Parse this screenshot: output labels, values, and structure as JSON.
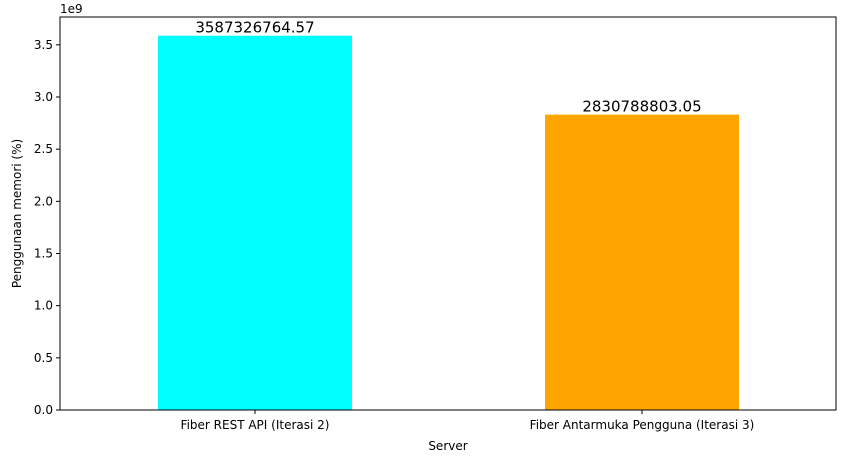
{
  "chart_data": {
    "type": "bar",
    "categories": [
      "Fiber REST API (Iterasi 2)",
      "Fiber Antarmuka Pengguna (Iterasi 3)"
    ],
    "values": [
      3587326764.57,
      2830788803.05
    ],
    "value_labels": [
      "3587326764.57",
      "2830788803.05"
    ],
    "colors": [
      "#00ffff",
      "#ffa500"
    ],
    "xlabel": "Server",
    "ylabel": "Penggunaan memori (%)",
    "ylim": [
      0,
      3766693102.8
    ],
    "yticks": [
      0,
      0.5,
      1.0,
      1.5,
      2.0,
      2.5,
      3.0,
      3.5
    ],
    "ytick_labels": [
      "0.0",
      "0.5",
      "1.0",
      "1.5",
      "2.0",
      "2.5",
      "3.0",
      "3.5"
    ],
    "y_scale_multiplier": 1000000000,
    "y_offset_label": "1e9",
    "grid": false,
    "legend": "none"
  }
}
